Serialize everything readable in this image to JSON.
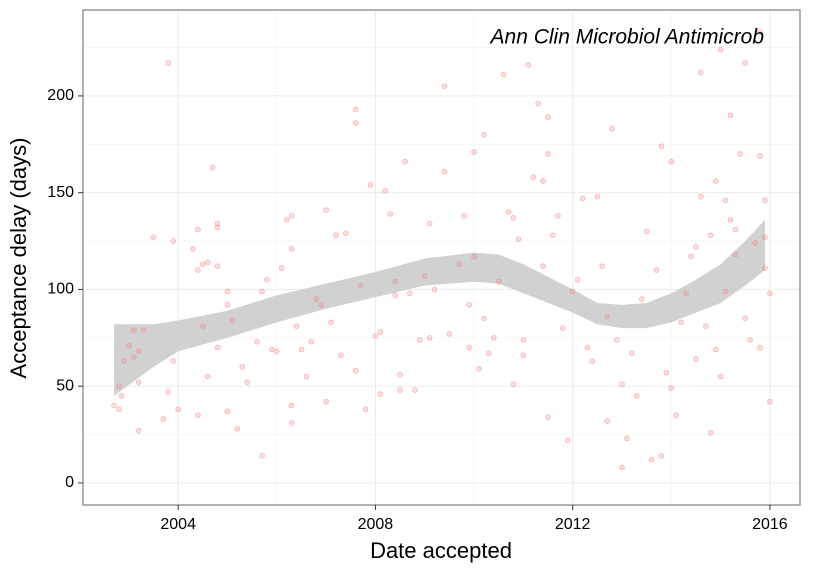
{
  "chart_data": {
    "type": "scatter",
    "annotation": "Ann Clin Microbiol Antimicrob",
    "x_label": "Date accepted",
    "y_label": "Acceptance delay (days)",
    "color": "#f08080",
    "grid": true,
    "xlim": [
      2002.07,
      2016.61
    ],
    "ylim": [
      -11.4,
      244.4
    ],
    "xticks": [
      2004,
      2008,
      2012,
      2016
    ],
    "yticks": [
      0,
      50,
      100,
      150,
      200
    ],
    "x": [
      2002.7,
      2002.8,
      2002.8,
      2002.9,
      2002.85,
      2003.0,
      2003.1,
      2003.2,
      2003.3,
      2003.2,
      2003.2,
      2003.1,
      2003.5,
      2003.8,
      2003.9,
      2003.8,
      2003.7,
      2003.9,
      2004.0,
      2004.3,
      2004.4,
      2004.4,
      2004.5,
      2004.5,
      2004.6,
      2004.4,
      2004.7,
      2004.8,
      2004.8,
      2004.8,
      2004.6,
      2004.8,
      2005.0,
      2005.0,
      2005.1,
      2005.2,
      2005.0,
      2005.3,
      2005.4,
      2005.6,
      2005.7,
      2005.8,
      2005.7,
      2005.9,
      2006.0,
      2006.1,
      2006.2,
      2006.3,
      2006.3,
      2006.3,
      2006.3,
      2006.4,
      2006.5,
      2006.6,
      2006.7,
      2006.8,
      2006.9,
      2007.0,
      2007.0,
      2007.1,
      2007.2,
      2007.4,
      2007.3,
      2007.6,
      2007.7,
      2007.6,
      2007.6,
      2007.8,
      2007.9,
      2008.0,
      2008.1,
      2008.1,
      2008.2,
      2008.3,
      2008.4,
      2008.4,
      2008.5,
      2008.5,
      2008.6,
      2008.7,
      2008.8,
      2008.9,
      2009.0,
      2009.1,
      2009.1,
      2009.2,
      2009.4,
      2009.4,
      2009.5,
      2009.7,
      2009.8,
      2009.9,
      2009.9,
      2010.0,
      2010.0,
      2010.1,
      2010.2,
      2010.2,
      2010.3,
      2010.4,
      2010.5,
      2010.6,
      2010.7,
      2010.8,
      2010.8,
      2010.9,
      2011.0,
      2011.0,
      2011.1,
      2011.2,
      2011.3,
      2011.4,
      2011.4,
      2011.5,
      2011.5,
      2011.5,
      2011.6,
      2011.7,
      2011.8,
      2011.9,
      2012.0,
      2012.1,
      2012.2,
      2012.3,
      2012.4,
      2012.5,
      2012.6,
      2012.7,
      2012.8,
      2012.7,
      2012.9,
      2013.0,
      2013.0,
      2013.1,
      2013.2,
      2013.3,
      2013.4,
      2013.5,
      2013.6,
      2013.7,
      2013.8,
      2013.8,
      2013.9,
      2014.0,
      2014.0,
      2014.1,
      2014.2,
      2014.3,
      2014.4,
      2014.5,
      2014.5,
      2014.6,
      2014.6,
      2014.7,
      2014.8,
      2014.8,
      2014.9,
      2014.9,
      2015.0,
      2015.0,
      2015.1,
      2015.1,
      2015.2,
      2015.2,
      2015.3,
      2015.3,
      2015.4,
      2015.5,
      2015.5,
      2015.6,
      2015.7,
      2015.8,
      2015.8,
      2015.9,
      2015.9,
      2016.0,
      2016.0,
      2015.9,
      2015.8
    ],
    "values": [
      40,
      38,
      50,
      63,
      45,
      71,
      79,
      68,
      79,
      52,
      27,
      65,
      127,
      217,
      125,
      47,
      33,
      63,
      38,
      121,
      131,
      110,
      113,
      81,
      114,
      35,
      163,
      132,
      134,
      112,
      55,
      70,
      99,
      92,
      84,
      28,
      37,
      60,
      52,
      73,
      99,
      105,
      14,
      69,
      68,
      111,
      136,
      138,
      121,
      40,
      31,
      81,
      69,
      55,
      73,
      95,
      92,
      141,
      42,
      83,
      128,
      129,
      66,
      58,
      102,
      193,
      186,
      38,
      154,
      76,
      46,
      78,
      151,
      139,
      104,
      97,
      56,
      48,
      166,
      98,
      48,
      74,
      107,
      75,
      134,
      100,
      205,
      161,
      77,
      113,
      138,
      92,
      70,
      171,
      117,
      59,
      180,
      85,
      67,
      75,
      104,
      211,
      140,
      51,
      137,
      126,
      74,
      66,
      216,
      158,
      196,
      156,
      112,
      189,
      170,
      34,
      128,
      138,
      80,
      22,
      99,
      105,
      147,
      70,
      63,
      148,
      112,
      86,
      183,
      32,
      74,
      8,
      51,
      23,
      67,
      45,
      95,
      130,
      12,
      110,
      174,
      14,
      57,
      49,
      166,
      35,
      83,
      98,
      117,
      64,
      122,
      212,
      148,
      81,
      128,
      26,
      156,
      69,
      224,
      55,
      146,
      99,
      190,
      136,
      131,
      118,
      170,
      217,
      85,
      74,
      124,
      70,
      169,
      127,
      111,
      98,
      42,
      146,
      233
    ],
    "band": {
      "color": "#cccccc",
      "x": [
        2002.7,
        2003.5,
        2004,
        2005,
        2006,
        2007,
        2008,
        2009,
        2010,
        2010.5,
        2011,
        2012,
        2012.5,
        2013,
        2013.5,
        2014,
        2014.5,
        2015,
        2015.5,
        2015.9
      ],
      "lower": [
        45,
        60,
        68,
        75,
        83,
        90,
        96,
        102,
        104,
        103,
        98,
        88,
        82,
        80,
        80,
        83,
        88,
        93,
        102,
        110
      ],
      "upper": [
        82,
        82,
        84,
        89,
        97,
        103,
        109,
        116,
        119,
        118,
        113,
        100,
        93,
        92,
        93,
        98,
        105,
        113,
        125,
        136
      ]
    }
  }
}
